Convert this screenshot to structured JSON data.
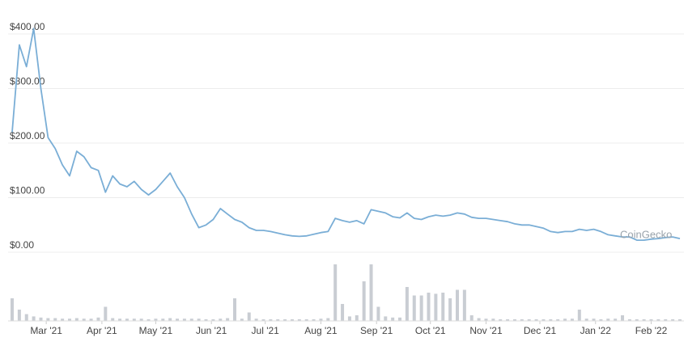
{
  "chart_data": {
    "type": "line",
    "color": "#7aaed6",
    "values": [
      220,
      380,
      340,
      410,
      300,
      210,
      190,
      160,
      140,
      185,
      175,
      155,
      150,
      110,
      140,
      125,
      120,
      130,
      115,
      105,
      115,
      130,
      145,
      120,
      100,
      70,
      45,
      50,
      60,
      80,
      70,
      60,
      55,
      45,
      40,
      40,
      38,
      35,
      32,
      30,
      29,
      30,
      33,
      36,
      38,
      62,
      58,
      55,
      58,
      52,
      78,
      75,
      72,
      65,
      63,
      72,
      62,
      60,
      65,
      68,
      66,
      68,
      72,
      70,
      64,
      62,
      62,
      60,
      58,
      56,
      52,
      50,
      50,
      47,
      44,
      38,
      36,
      38,
      38,
      42,
      40,
      42,
      38,
      32,
      30,
      28,
      28,
      22,
      22,
      24,
      25,
      27,
      28,
      25
    ],
    "xlim": [
      0,
      93
    ],
    "xticks": [
      {
        "value": 4.75,
        "label": "Mar '21"
      },
      {
        "value": 12.5,
        "label": "Apr '21"
      },
      {
        "value": 20,
        "label": "May '21"
      },
      {
        "value": 27.75,
        "label": "Jun '21"
      },
      {
        "value": 35.25,
        "label": "Jul '21"
      },
      {
        "value": 43,
        "label": "Aug '21"
      },
      {
        "value": 50.75,
        "label": "Sep '21"
      },
      {
        "value": 58.25,
        "label": "Oct '21"
      },
      {
        "value": 66,
        "label": "Nov '21"
      },
      {
        "value": 73.5,
        "label": "Dec '21"
      },
      {
        "value": 81.25,
        "label": "Jan '22"
      },
      {
        "value": 89,
        "label": "Feb '22"
      }
    ],
    "ylim": [
      0,
      400
    ],
    "yticks": [
      {
        "value": 0,
        "label": "$0.00"
      },
      {
        "value": 100,
        "label": "$100.00"
      },
      {
        "value": 200,
        "label": "$200.00"
      },
      {
        "value": 300,
        "label": "$300.00"
      },
      {
        "value": 400,
        "label": "$400.00"
      }
    ],
    "grid": true,
    "watermark": "CoinGecko",
    "volume": {
      "color": "#c9cdd3",
      "ylim": [
        0,
        100
      ],
      "values": [
        40,
        20,
        12,
        8,
        6,
        5,
        5,
        4,
        4,
        5,
        4,
        4,
        6,
        25,
        5,
        4,
        4,
        4,
        4,
        3,
        4,
        4,
        5,
        4,
        4,
        4,
        4,
        3,
        3,
        4,
        5,
        40,
        4,
        15,
        4,
        3,
        3,
        3,
        3,
        3,
        3,
        3,
        3,
        4,
        5,
        100,
        30,
        8,
        10,
        70,
        100,
        25,
        8,
        6,
        6,
        60,
        45,
        45,
        50,
        48,
        50,
        40,
        55,
        55,
        10,
        5,
        4,
        4,
        3,
        3,
        3,
        3,
        3,
        3,
        3,
        3,
        3,
        4,
        4,
        20,
        4,
        4,
        3,
        4,
        4,
        10,
        3,
        3,
        3,
        3,
        3,
        3,
        3,
        3
      ]
    }
  }
}
